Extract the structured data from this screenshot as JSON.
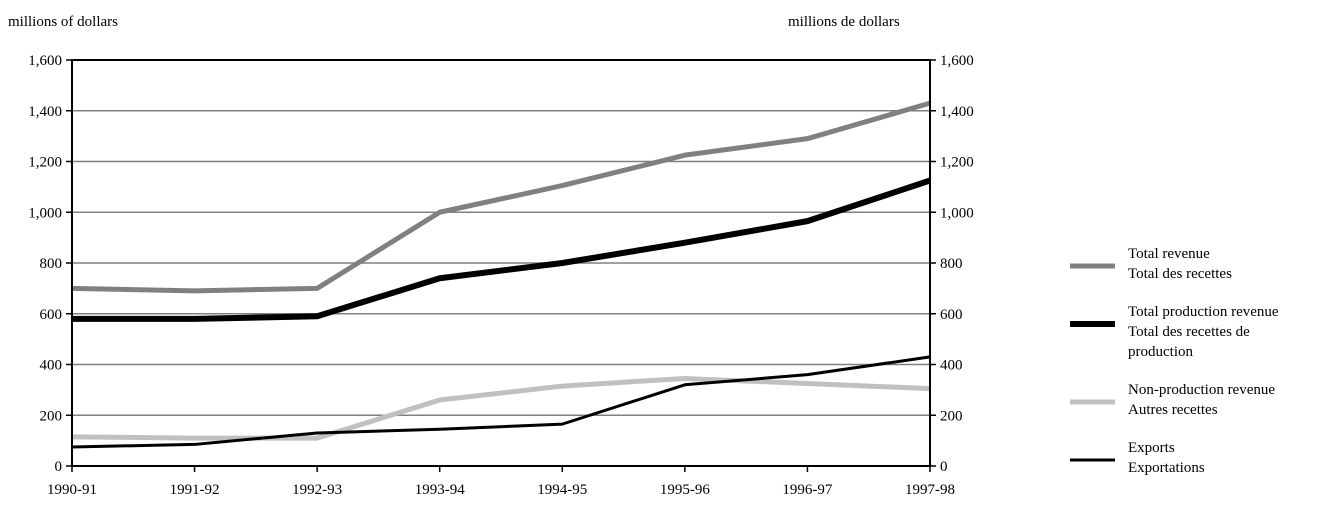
{
  "chart_data": {
    "type": "line",
    "ylabel_left": "millions of dollars",
    "ylabel_right": "millions de dollars",
    "ylim": [
      0,
      1600
    ],
    "yticks": [
      0,
      200,
      400,
      600,
      800,
      1000,
      1200,
      1400,
      1600
    ],
    "ytick_labels": [
      "0",
      "200",
      "400",
      "600",
      "800",
      "1,000",
      "1,200",
      "1,400",
      "1,600"
    ],
    "categories": [
      "1990-91",
      "1991-92",
      "1992-93",
      "1993-94",
      "1994-95",
      "1995-96",
      "1996-97",
      "1997-98"
    ],
    "grid": true,
    "legend_position": "right",
    "series": [
      {
        "name": "Total revenue",
        "name_fr": "Total des recettes",
        "color": "#808080",
        "width": 5,
        "values": [
          700,
          690,
          700,
          1000,
          1105,
          1225,
          1290,
          1430
        ]
      },
      {
        "name": "Total production revenue",
        "name_fr": "Total des recettes de production",
        "color": "#000000",
        "width": 6,
        "values": [
          580,
          580,
          590,
          740,
          800,
          880,
          965,
          1125
        ]
      },
      {
        "name": "Non-production revenue",
        "name_fr": "Autres recettes",
        "color": "#c0c0c0",
        "width": 5,
        "values": [
          115,
          110,
          110,
          260,
          315,
          345,
          325,
          305
        ]
      },
      {
        "name": "Exports",
        "name_fr": "Exportations",
        "color": "#000000",
        "width": 3,
        "values": [
          75,
          85,
          130,
          145,
          165,
          320,
          360,
          430
        ]
      }
    ]
  }
}
